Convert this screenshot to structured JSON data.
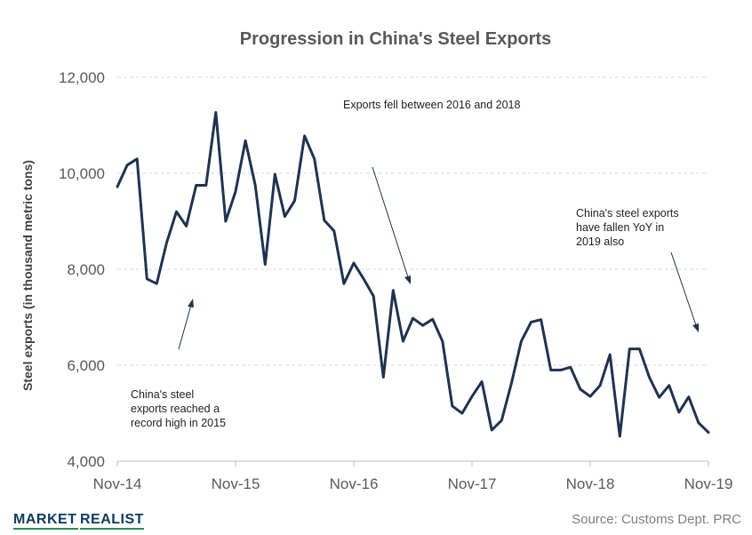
{
  "chart_data": {
    "type": "line",
    "title": "Progression in China's Steel Exports",
    "ylabel": "Steel exports (in thousand metric tons)",
    "xlabel": "",
    "ylim": [
      4000,
      12000
    ],
    "yticks": [
      "4,000",
      "6,000",
      "8,000",
      "10,000",
      "12,000"
    ],
    "ytick_values": [
      4000,
      6000,
      8000,
      10000,
      12000
    ],
    "xtick_labels": [
      "Nov-14",
      "Nov-15",
      "Nov-16",
      "Nov-17",
      "Nov-18",
      "Nov-19"
    ],
    "xtick_indices": [
      0,
      12,
      24,
      36,
      48,
      60
    ],
    "grid": "horizontal-dashed",
    "series": [
      {
        "color": "#1f3350",
        "values": [
          9720,
          10170,
          10300,
          7800,
          7700,
          8550,
          9200,
          8900,
          9750,
          9750,
          11270,
          9000,
          9620,
          10680,
          9750,
          8100,
          9980,
          9100,
          9430,
          10780,
          10300,
          9020,
          8800,
          7700,
          8130,
          7800,
          7440,
          5750,
          7560,
          6500,
          6980,
          6830,
          6960,
          6500,
          5150,
          5000,
          5350,
          5660,
          4650,
          4850,
          5620,
          6500,
          6900,
          6950,
          5900,
          5900,
          5960,
          5500,
          5350,
          5580,
          6220,
          4520,
          6340,
          6340,
          5750,
          5330,
          5580,
          5020,
          5340,
          4800,
          4600
        ]
      }
    ],
    "annotations": [
      {
        "text": [
          "China's steel",
          "exports reached a",
          "record high in 2015"
        ]
      },
      {
        "text": [
          "Exports fell between 2016 and 2018"
        ]
      },
      {
        "text": [
          "China's steel exports",
          "have fallen YoY in",
          "2019 also"
        ]
      }
    ]
  },
  "footer": {
    "logo_market": "MARKET",
    "logo_realist": "REALIST",
    "source": "Source: Customs Dept. PRC"
  }
}
